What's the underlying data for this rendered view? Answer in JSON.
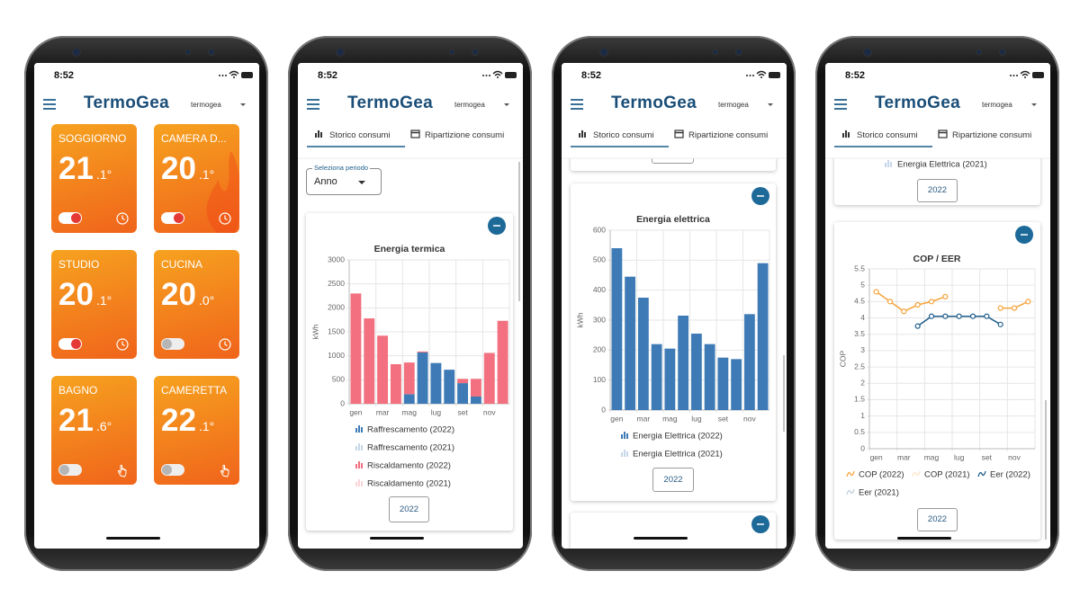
{
  "phones": [
    {
      "time": "8:52",
      "brand": "TermoGea",
      "user": "termogea",
      "rooms": [
        {
          "name": "SOGGIORNO",
          "temp": "21",
          "decimal": ".1°",
          "on": true,
          "icon": "clock"
        },
        {
          "name": "CAMERA D...",
          "temp": "20",
          "decimal": ".1°",
          "on": true,
          "icon": "clock",
          "flame": true
        },
        {
          "name": "STUDIO",
          "temp": "20",
          "decimal": ".1°",
          "on": true,
          "icon": "clock"
        },
        {
          "name": "CUCINA",
          "temp": "20",
          "decimal": ".0°",
          "on": false,
          "icon": "clock"
        },
        {
          "name": "BAGNO",
          "temp": "21",
          "decimal": ".6°",
          "on": false,
          "icon": "hand"
        },
        {
          "name": "CAMERETTA",
          "temp": "22",
          "decimal": ".1°",
          "on": false,
          "icon": "hand"
        }
      ]
    },
    {
      "time": "8:52",
      "brand": "TermoGea",
      "user": "termogea",
      "tabs": [
        "Storico consumi",
        "Ripartizione consumi"
      ],
      "period_label": "Seleziona periodo",
      "period": "Anno",
      "chart": {
        "type": "bar",
        "stacked": true,
        "title": "Energia termica",
        "ylabel": "kWh",
        "categories": [
          "gen",
          null,
          "mar",
          null,
          "mag",
          null,
          "lug",
          null,
          "set",
          null,
          "nov",
          null
        ],
        "series": [
          {
            "name": "Raffrescamento (2022)",
            "color": "#3e7bb6",
            "values": [
              0,
              0,
              0,
              0,
              200,
              1070,
              850,
              710,
              430,
              150,
              0,
              0
            ]
          },
          {
            "name": "Raffrescamento (2021)",
            "color": "#3e7bb6",
            "hidden": true,
            "values": [
              null,
              null,
              null,
              null,
              null,
              null,
              null,
              null,
              null,
              null,
              null,
              null
            ]
          },
          {
            "name": "Riscaldamento (2022)",
            "color": "#f2707f",
            "values": [
              2300,
              1780,
              1420,
              825,
              660,
              20,
              0,
              0,
              90,
              370,
              1060,
              1730
            ]
          },
          {
            "name": "Riscaldamento (2021)",
            "color": "#f2707f",
            "hidden": true,
            "values": [
              null,
              null,
              null,
              null,
              null,
              null,
              null,
              null,
              null,
              null,
              null,
              null
            ]
          }
        ],
        "ylim": [
          0,
          3000
        ],
        "yticks": [
          0,
          500,
          1000,
          1500,
          2000,
          2500,
          3000
        ],
        "grid": true
      },
      "year_button": "2022"
    },
    {
      "time": "8:52",
      "brand": "TermoGea",
      "user": "termogea",
      "tabs": [
        "Storico consumi",
        "Ripartizione consumi"
      ],
      "chart": {
        "type": "bar",
        "title": "Energia elettrica",
        "ylabel": "kWh",
        "categories": [
          "gen",
          null,
          "mar",
          null,
          "mag",
          null,
          "lug",
          null,
          "set",
          null,
          "nov",
          null
        ],
        "series": [
          {
            "name": "Energia Elettrica (2022)",
            "color": "#3e7bb6",
            "values": [
              540,
              445,
              375,
              220,
              205,
              315,
              255,
              220,
              175,
              170,
              320,
              490
            ]
          },
          {
            "name": "Energia Elettrica (2021)",
            "color": "#3e7bb6",
            "hidden": true,
            "values": [
              null,
              null,
              null,
              null,
              null,
              null,
              null,
              null,
              null,
              null,
              null,
              null
            ]
          }
        ],
        "ylim": [
          0,
          600
        ],
        "yticks": [
          0,
          100,
          200,
          300,
          400,
          500,
          600
        ],
        "grid": true
      },
      "year_button": "2022"
    },
    {
      "time": "8:52",
      "brand": "TermoGea",
      "user": "termogea",
      "tabs": [
        "Storico consumi",
        "Ripartizione consumi"
      ],
      "top_legend": "Energia Elettrica (2021)",
      "top_button": "2022",
      "chart": {
        "type": "line",
        "title": "COP / EER",
        "ylabel": "COP",
        "categories": [
          "gen",
          null,
          "mar",
          null,
          "mag",
          null,
          "lug",
          null,
          "set",
          null,
          "nov",
          null
        ],
        "series": [
          {
            "name": "COP (2022)",
            "color": "#f5a33a",
            "values": [
              4.8,
              4.5,
              4.2,
              4.4,
              4.5,
              4.65,
              null,
              null,
              null,
              4.3,
              4.3,
              4.5
            ]
          },
          {
            "name": "COP (2021)",
            "color": "#f5a33a",
            "hidden": true,
            "values": [
              null,
              null,
              null,
              null,
              null,
              null,
              null,
              null,
              null,
              null,
              null,
              null
            ]
          },
          {
            "name": "Eer (2022)",
            "color": "#1d5c8a",
            "values": [
              null,
              null,
              null,
              3.75,
              4.05,
              4.05,
              4.05,
              4.05,
              4.05,
              3.8,
              null,
              null
            ]
          },
          {
            "name": "Eer (2021)",
            "color": "#1d5c8a",
            "hidden": true,
            "values": [
              null,
              null,
              null,
              null,
              null,
              null,
              null,
              null,
              null,
              null,
              null,
              null
            ]
          }
        ],
        "ylim": [
          0,
          5.5
        ],
        "yticks": [
          0,
          0.5,
          1,
          1.5,
          2,
          2.5,
          3,
          3.5,
          4,
          4.5,
          5,
          5.5
        ],
        "grid": true
      },
      "year_button": "2022"
    }
  ]
}
